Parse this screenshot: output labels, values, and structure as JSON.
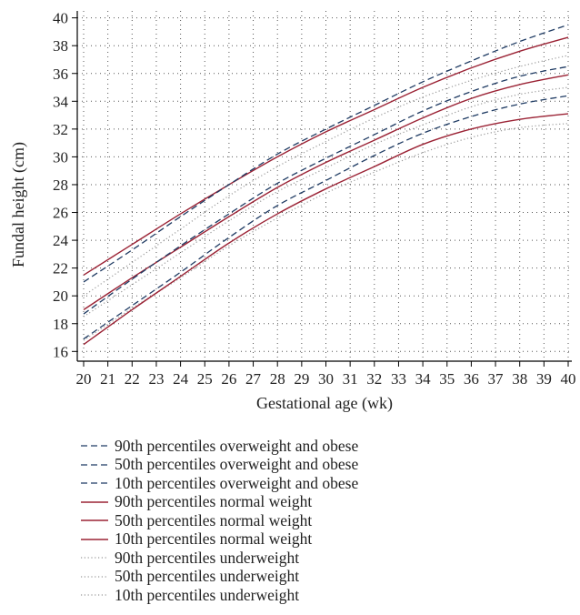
{
  "chart_data": {
    "type": "line",
    "title": "",
    "xlabel": "Gestational age (wk)",
    "ylabel": "Fundal height (cm)",
    "xlim": [
      20,
      40
    ],
    "ylim": [
      15.3,
      40.5
    ],
    "xticks": [
      20,
      21,
      22,
      23,
      24,
      25,
      26,
      27,
      28,
      29,
      30,
      31,
      32,
      33,
      34,
      35,
      36,
      37,
      38,
      39,
      40
    ],
    "yticks": [
      16,
      18,
      20,
      22,
      24,
      26,
      28,
      30,
      32,
      34,
      36,
      38,
      40
    ],
    "grid": "dotted",
    "legend_position": "bottom",
    "x": [
      20,
      22,
      24,
      26,
      28,
      30,
      32,
      34,
      36,
      38,
      40
    ],
    "series": [
      {
        "name": "90th percentiles overweight and obese",
        "style": "dashed",
        "color": "#1f3b63",
        "values": [
          21.0,
          23.3,
          25.7,
          28.0,
          30.2,
          32.0,
          33.7,
          35.4,
          36.9,
          38.3,
          39.5
        ]
      },
      {
        "name": "50th percentiles overweight and obese",
        "style": "dashed",
        "color": "#1f3b63",
        "values": [
          18.7,
          21.2,
          23.6,
          25.9,
          28.1,
          29.9,
          31.6,
          33.3,
          34.7,
          35.8,
          36.5
        ]
      },
      {
        "name": "10th percentiles overweight and obese",
        "style": "dashed",
        "color": "#1f3b63",
        "values": [
          16.9,
          19.3,
          21.7,
          24.2,
          26.5,
          28.3,
          30.1,
          31.7,
          32.9,
          33.8,
          34.4
        ]
      },
      {
        "name": "90th percentiles normal weight",
        "style": "solid",
        "color": "#9b2335",
        "values": [
          21.5,
          23.7,
          25.9,
          28.0,
          30.0,
          31.8,
          33.4,
          35.0,
          36.4,
          37.6,
          38.6
        ]
      },
      {
        "name": "50th percentiles normal weight",
        "style": "solid",
        "color": "#9b2335",
        "values": [
          19.0,
          21.3,
          23.5,
          25.7,
          27.8,
          29.6,
          31.2,
          32.8,
          34.2,
          35.2,
          35.9
        ]
      },
      {
        "name": "10th percentiles normal weight",
        "style": "solid",
        "color": "#9b2335",
        "values": [
          16.5,
          19.0,
          21.4,
          23.8,
          25.9,
          27.7,
          29.3,
          30.9,
          32.0,
          32.7,
          33.1
        ]
      },
      {
        "name": "90th percentiles underweight",
        "style": "dotted",
        "color": "#999999",
        "values": [
          20.0,
          22.4,
          24.8,
          27.2,
          29.3,
          31.1,
          32.8,
          34.3,
          35.5,
          36.5,
          37.3
        ]
      },
      {
        "name": "50th percentiles underweight",
        "style": "dotted",
        "color": "#999999",
        "values": [
          18.5,
          20.8,
          23.1,
          25.4,
          27.5,
          29.2,
          30.9,
          32.3,
          33.6,
          34.5,
          35.0
        ]
      },
      {
        "name": "10th percentiles underweight",
        "style": "dotted",
        "color": "#999999",
        "values": [
          16.8,
          19.1,
          21.3,
          23.6,
          25.6,
          27.4,
          28.9,
          30.3,
          31.4,
          32.1,
          32.4
        ]
      }
    ]
  }
}
